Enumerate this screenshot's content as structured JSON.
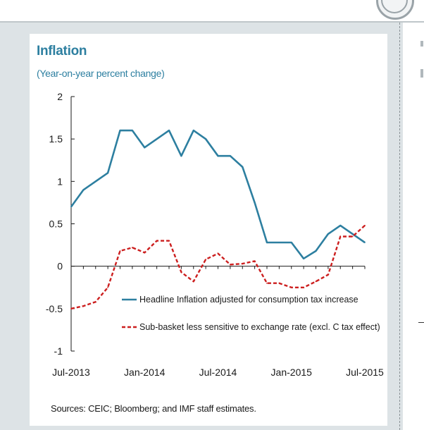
{
  "page": {
    "title": "Inflation",
    "subtitle": "(Year-on-year percent change)",
    "source": "Sources: CEIC; Bloomberg; and IMF staff estimates."
  },
  "chart_data": {
    "type": "line",
    "title": "Inflation",
    "subtitle": "(Year-on-year percent change)",
    "xlabel": "",
    "ylabel": "",
    "ylim": [
      -1,
      2
    ],
    "yticks": [
      2,
      1.5,
      1,
      0.5,
      0,
      -0.5,
      -1
    ],
    "ytick_labels": [
      "2",
      "1.5",
      "1",
      "0.5",
      "0",
      "-0.5",
      "-1"
    ],
    "xtick_labels": [
      "Jul-2013",
      "Jan-2014",
      "Jul-2014",
      "Jan-2015",
      "Jul-2015"
    ],
    "xtick_positions": [
      0,
      6,
      12,
      18,
      24
    ],
    "months": [
      "Jul-2013",
      "Aug-2013",
      "Sep-2013",
      "Oct-2013",
      "Nov-2013",
      "Dec-2013",
      "Jan-2014",
      "Feb-2014",
      "Mar-2014",
      "Apr-2014",
      "May-2014",
      "Jun-2014",
      "Jul-2014",
      "Aug-2014",
      "Sep-2014",
      "Oct-2014",
      "Nov-2014",
      "Dec-2014",
      "Jan-2015",
      "Feb-2015",
      "Mar-2015",
      "Apr-2015",
      "May-2015",
      "Jun-2015",
      "Jul-2015"
    ],
    "series": [
      {
        "name": "Headline Inflation adjusted for consumption tax increase",
        "style": "solid",
        "color": "#2d7fa0",
        "values": [
          0.7,
          0.9,
          1.0,
          1.1,
          1.6,
          1.6,
          1.4,
          1.5,
          1.6,
          1.3,
          1.6,
          1.5,
          1.3,
          1.3,
          1.17,
          0.75,
          0.28,
          0.28,
          0.28,
          0.09,
          0.18,
          0.38,
          0.48,
          0.38,
          0.28
        ]
      },
      {
        "name": "Sub-basket less sensitive to exchange rate (excl. C tax effect)",
        "style": "dashed",
        "color": "#cc1f1f",
        "values": [
          -0.5,
          -0.47,
          -0.42,
          -0.25,
          0.18,
          0.22,
          0.16,
          0.3,
          0.3,
          -0.07,
          -0.18,
          0.08,
          0.15,
          0.02,
          0.03,
          0.06,
          -0.2,
          -0.2,
          -0.25,
          -0.25,
          -0.18,
          -0.1,
          0.35,
          0.35,
          0.48
        ]
      }
    ],
    "legend": "lower-left inside plot"
  },
  "colors": {
    "headline": "#2d7fa0",
    "subbasket": "#cc1f1f",
    "title": "#2d7fa0",
    "axis": "#1a1a1a"
  }
}
